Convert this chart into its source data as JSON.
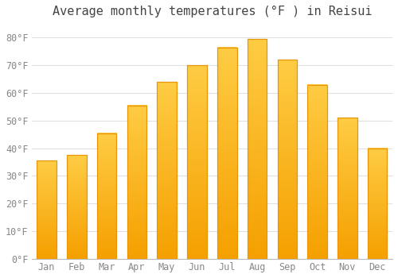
{
  "title": "Average monthly temperatures (°F ) in Reisui",
  "months": [
    "Jan",
    "Feb",
    "Mar",
    "Apr",
    "May",
    "Jun",
    "Jul",
    "Aug",
    "Sep",
    "Oct",
    "Nov",
    "Dec"
  ],
  "values": [
    35.5,
    37.5,
    45.5,
    55.5,
    64.0,
    70.0,
    76.5,
    79.5,
    72.0,
    63.0,
    51.0,
    40.0
  ],
  "bar_color_top": "#FFCC44",
  "bar_color_bottom": "#F5A000",
  "bar_edge_color": "#E8950A",
  "background_color": "#FFFFFF",
  "grid_color": "#E0E0E0",
  "yticks": [
    0,
    10,
    20,
    30,
    40,
    50,
    60,
    70,
    80
  ],
  "ytick_labels": [
    "0°F",
    "10°F",
    "20°F",
    "30°F",
    "40°F",
    "50°F",
    "60°F",
    "70°F",
    "80°F"
  ],
  "ylim": [
    0,
    85
  ],
  "tick_font_size": 8.5,
  "title_font_size": 11,
  "tick_color": "#888888",
  "title_color": "#444444"
}
